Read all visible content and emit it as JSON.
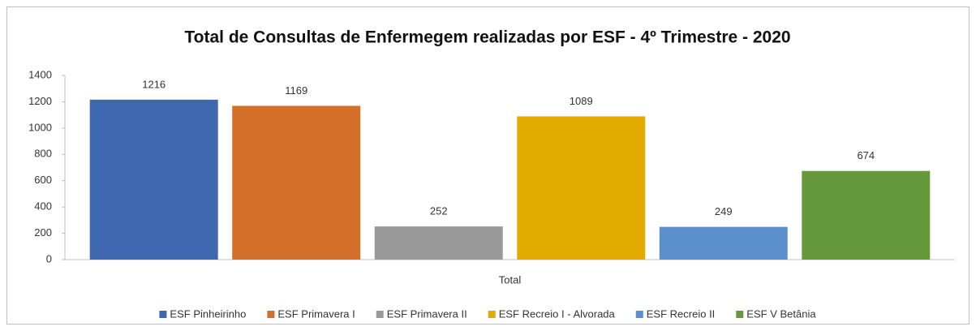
{
  "chart_data": {
    "type": "bar",
    "title": "Total de Consultas de Enfermegem realizadas por ESF - 4º Trimestre - 2020",
    "categories": [
      "Total"
    ],
    "series": [
      {
        "name": "ESF Pinheirinho",
        "color": "#4068b1",
        "values": [
          1216
        ]
      },
      {
        "name": "ESF Primavera I",
        "color": "#d46f2a",
        "values": [
          1169
        ]
      },
      {
        "name": "ESF Primavera II",
        "color": "#999999",
        "values": [
          252
        ]
      },
      {
        "name": "ESF Recreio I - Alvorada",
        "color": "#e3aa00",
        "values": [
          1089
        ]
      },
      {
        "name": "ESF Recreio II",
        "color": "#5b8fcd",
        "values": [
          249
        ]
      },
      {
        "name": "ESF V Betânia",
        "color": "#66993c",
        "values": [
          674
        ]
      }
    ],
    "ylim": [
      0,
      1400
    ],
    "yticks": [
      0,
      200,
      400,
      600,
      800,
      1000,
      1200,
      1400
    ],
    "grid": false,
    "legend": "bottom"
  }
}
